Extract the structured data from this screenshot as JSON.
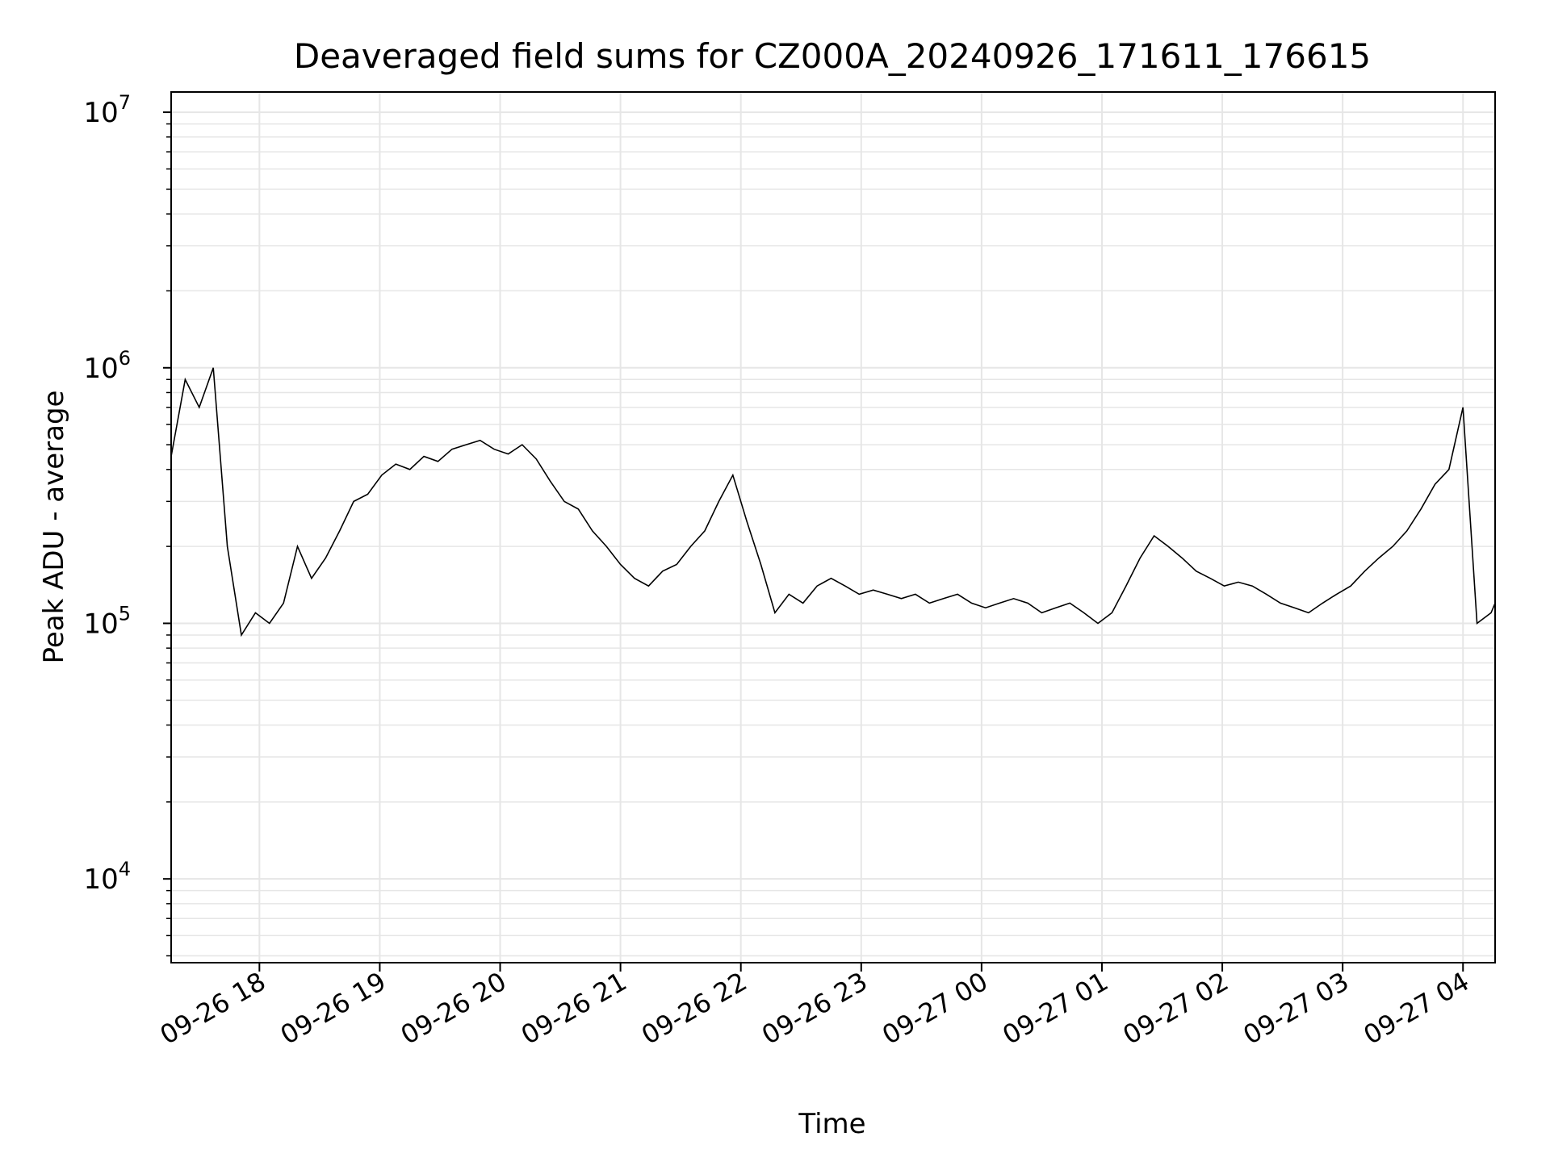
{
  "chart_data": {
    "type": "line",
    "title": "Deaveraged field sums for CZ000A_20240926_171611_176615",
    "xlabel": "Time",
    "ylabel": "Peak ADU - average",
    "yscale": "log",
    "ylim": [
      4700,
      12000000
    ],
    "xlim": [
      "2024-09-26 17:16",
      "2024-09-27 04:16"
    ],
    "grid": true,
    "line_color": "#000000",
    "grid_color": "#e6e6e6",
    "x_ticks": [
      {
        "value": "2024-09-26 18:00",
        "label": "09-26 18"
      },
      {
        "value": "2024-09-26 19:00",
        "label": "09-26 19"
      },
      {
        "value": "2024-09-26 20:00",
        "label": "09-26 20"
      },
      {
        "value": "2024-09-26 21:00",
        "label": "09-26 21"
      },
      {
        "value": "2024-09-26 22:00",
        "label": "09-26 22"
      },
      {
        "value": "2024-09-26 23:00",
        "label": "09-26 23"
      },
      {
        "value": "2024-09-27 00:00",
        "label": "09-27 00"
      },
      {
        "value": "2024-09-27 01:00",
        "label": "09-27 01"
      },
      {
        "value": "2024-09-27 02:00",
        "label": "09-27 02"
      },
      {
        "value": "2024-09-27 03:00",
        "label": "09-27 03"
      },
      {
        "value": "2024-09-27 04:00",
        "label": "09-27 04"
      }
    ],
    "y_ticks": [
      {
        "value": 10000,
        "label_base": "10",
        "label_exp": "4"
      },
      {
        "value": 100000,
        "label_base": "10",
        "label_exp": "5"
      },
      {
        "value": 1000000,
        "label_base": "10",
        "label_exp": "6"
      },
      {
        "value": 10000000,
        "label_base": "10",
        "label_exp": "7"
      }
    ],
    "series": [
      {
        "points": [
          [
            "2024-09-26 17:16",
            450000
          ],
          [
            "2024-09-26 17:23",
            900000
          ],
          [
            "2024-09-26 17:30",
            700000
          ],
          [
            "2024-09-26 17:37",
            1000000
          ],
          [
            "2024-09-26 17:44",
            200000
          ],
          [
            "2024-09-26 17:51",
            90000
          ],
          [
            "2024-09-26 17:58",
            110000
          ],
          [
            "2024-09-26 18:05",
            100000
          ],
          [
            "2024-09-26 18:12",
            120000
          ],
          [
            "2024-09-26 18:19",
            200000
          ],
          [
            "2024-09-26 18:26",
            150000
          ],
          [
            "2024-09-26 18:33",
            180000
          ],
          [
            "2024-09-26 18:40",
            230000
          ],
          [
            "2024-09-26 18:47",
            300000
          ],
          [
            "2024-09-26 18:54",
            320000
          ],
          [
            "2024-09-26 19:01",
            380000
          ],
          [
            "2024-09-26 19:08",
            420000
          ],
          [
            "2024-09-26 19:15",
            400000
          ],
          [
            "2024-09-26 19:22",
            450000
          ],
          [
            "2024-09-26 19:29",
            430000
          ],
          [
            "2024-09-26 19:36",
            480000
          ],
          [
            "2024-09-26 19:43",
            500000
          ],
          [
            "2024-09-26 19:50",
            520000
          ],
          [
            "2024-09-26 19:57",
            480000
          ],
          [
            "2024-09-26 20:04",
            460000
          ],
          [
            "2024-09-26 20:11",
            500000
          ],
          [
            "2024-09-26 20:18",
            440000
          ],
          [
            "2024-09-26 20:25",
            360000
          ],
          [
            "2024-09-26 20:32",
            300000
          ],
          [
            "2024-09-26 20:39",
            280000
          ],
          [
            "2024-09-26 20:46",
            230000
          ],
          [
            "2024-09-26 20:53",
            200000
          ],
          [
            "2024-09-26 21:00",
            170000
          ],
          [
            "2024-09-26 21:07",
            150000
          ],
          [
            "2024-09-26 21:14",
            140000
          ],
          [
            "2024-09-26 21:21",
            160000
          ],
          [
            "2024-09-26 21:28",
            170000
          ],
          [
            "2024-09-26 21:35",
            200000
          ],
          [
            "2024-09-26 21:42",
            230000
          ],
          [
            "2024-09-26 21:49",
            300000
          ],
          [
            "2024-09-26 21:56",
            380000
          ],
          [
            "2024-09-26 22:03",
            250000
          ],
          [
            "2024-09-26 22:10",
            170000
          ],
          [
            "2024-09-26 22:17",
            110000
          ],
          [
            "2024-09-26 22:24",
            130000
          ],
          [
            "2024-09-26 22:31",
            120000
          ],
          [
            "2024-09-26 22:38",
            140000
          ],
          [
            "2024-09-26 22:45",
            150000
          ],
          [
            "2024-09-26 22:52",
            140000
          ],
          [
            "2024-09-26 22:59",
            130000
          ],
          [
            "2024-09-26 23:06",
            135000
          ],
          [
            "2024-09-26 23:13",
            130000
          ],
          [
            "2024-09-26 23:20",
            125000
          ],
          [
            "2024-09-26 23:27",
            130000
          ],
          [
            "2024-09-26 23:34",
            120000
          ],
          [
            "2024-09-26 23:41",
            125000
          ],
          [
            "2024-09-26 23:48",
            130000
          ],
          [
            "2024-09-26 23:55",
            120000
          ],
          [
            "2024-09-27 00:02",
            115000
          ],
          [
            "2024-09-27 00:09",
            120000
          ],
          [
            "2024-09-27 00:16",
            125000
          ],
          [
            "2024-09-27 00:23",
            120000
          ],
          [
            "2024-09-27 00:30",
            110000
          ],
          [
            "2024-09-27 00:37",
            115000
          ],
          [
            "2024-09-27 00:44",
            120000
          ],
          [
            "2024-09-27 00:51",
            110000
          ],
          [
            "2024-09-27 00:58",
            100000
          ],
          [
            "2024-09-27 01:05",
            110000
          ],
          [
            "2024-09-27 01:12",
            140000
          ],
          [
            "2024-09-27 01:19",
            180000
          ],
          [
            "2024-09-27 01:26",
            220000
          ],
          [
            "2024-09-27 01:33",
            200000
          ],
          [
            "2024-09-27 01:40",
            180000
          ],
          [
            "2024-09-27 01:47",
            160000
          ],
          [
            "2024-09-27 01:54",
            150000
          ],
          [
            "2024-09-27 02:01",
            140000
          ],
          [
            "2024-09-27 02:08",
            145000
          ],
          [
            "2024-09-27 02:15",
            140000
          ],
          [
            "2024-09-27 02:22",
            130000
          ],
          [
            "2024-09-27 02:29",
            120000
          ],
          [
            "2024-09-27 02:36",
            115000
          ],
          [
            "2024-09-27 02:43",
            110000
          ],
          [
            "2024-09-27 02:50",
            120000
          ],
          [
            "2024-09-27 02:57",
            130000
          ],
          [
            "2024-09-27 03:04",
            140000
          ],
          [
            "2024-09-27 03:11",
            160000
          ],
          [
            "2024-09-27 03:18",
            180000
          ],
          [
            "2024-09-27 03:25",
            200000
          ],
          [
            "2024-09-27 03:32",
            230000
          ],
          [
            "2024-09-27 03:39",
            280000
          ],
          [
            "2024-09-27 03:46",
            350000
          ],
          [
            "2024-09-27 03:53",
            400000
          ],
          [
            "2024-09-27 04:00",
            700000
          ],
          [
            "2024-09-27 04:07",
            100000
          ],
          [
            "2024-09-27 04:14",
            110000
          ],
          [
            "2024-09-27 04:16",
            120000
          ]
        ]
      }
    ]
  }
}
